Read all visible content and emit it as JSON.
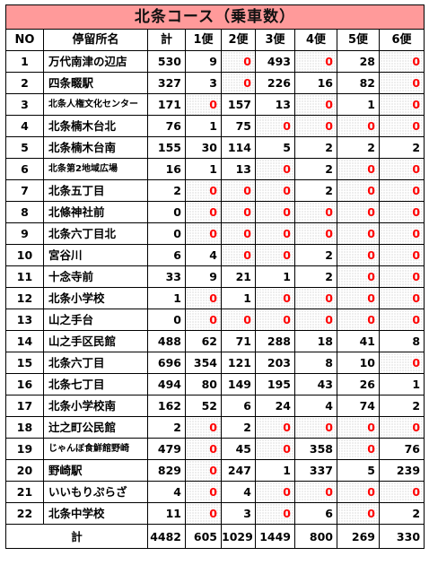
{
  "title": "北条コース（乗車数）",
  "headers": [
    "NO",
    "停留所名",
    "計",
    "1便",
    "2便",
    "3便",
    "4便",
    "5便",
    "6便"
  ],
  "rows": [
    {
      "no": "1",
      "name": "万代南津の辺店",
      "small": false,
      "values": [
        "530",
        "9",
        "0",
        "493",
        "0",
        "28",
        "0"
      ]
    },
    {
      "no": "2",
      "name": "四条畷駅",
      "small": false,
      "values": [
        "327",
        "3",
        "0",
        "226",
        "16",
        "82",
        "0"
      ]
    },
    {
      "no": "3",
      "name": "北条人権文化センター",
      "small": true,
      "values": [
        "171",
        "0",
        "157",
        "13",
        "0",
        "1",
        "0"
      ]
    },
    {
      "no": "4",
      "name": "北条楠木台北",
      "small": false,
      "values": [
        "76",
        "1",
        "75",
        "0",
        "0",
        "0",
        "0"
      ]
    },
    {
      "no": "5",
      "name": "北条楠木台南",
      "small": false,
      "values": [
        "155",
        "30",
        "114",
        "5",
        "2",
        "2",
        "2"
      ]
    },
    {
      "no": "6",
      "name": "北条第2地域広場",
      "small": true,
      "values": [
        "16",
        "1",
        "13",
        "0",
        "2",
        "0",
        "0"
      ]
    },
    {
      "no": "7",
      "name": "北条五丁目",
      "small": false,
      "values": [
        "2",
        "0",
        "0",
        "0",
        "2",
        "0",
        "0"
      ]
    },
    {
      "no": "8",
      "name": "北條神社前",
      "small": false,
      "values": [
        "0",
        "0",
        "0",
        "0",
        "0",
        "0",
        "0"
      ]
    },
    {
      "no": "9",
      "name": "北条六丁目北",
      "small": false,
      "values": [
        "0",
        "0",
        "0",
        "0",
        "0",
        "0",
        "0"
      ]
    },
    {
      "no": "10",
      "name": "宮谷川",
      "small": false,
      "values": [
        "6",
        "4",
        "0",
        "0",
        "2",
        "0",
        "0"
      ]
    },
    {
      "no": "11",
      "name": "十念寺前",
      "small": false,
      "values": [
        "33",
        "9",
        "21",
        "1",
        "2",
        "0",
        "0"
      ]
    },
    {
      "no": "12",
      "name": "北条小学校",
      "small": false,
      "values": [
        "1",
        "0",
        "1",
        "0",
        "0",
        "0",
        "0"
      ]
    },
    {
      "no": "13",
      "name": "山之手台",
      "small": false,
      "values": [
        "0",
        "0",
        "0",
        "0",
        "0",
        "0",
        "0"
      ]
    },
    {
      "no": "14",
      "name": "山之手区民館",
      "small": false,
      "values": [
        "488",
        "62",
        "71",
        "288",
        "18",
        "41",
        "8"
      ]
    },
    {
      "no": "15",
      "name": "北条六丁目",
      "small": false,
      "values": [
        "696",
        "354",
        "121",
        "203",
        "8",
        "10",
        "0"
      ]
    },
    {
      "no": "16",
      "name": "北条七丁目",
      "small": false,
      "values": [
        "494",
        "80",
        "149",
        "195",
        "43",
        "26",
        "1"
      ]
    },
    {
      "no": "17",
      "name": "北条小学校南",
      "small": false,
      "values": [
        "162",
        "52",
        "6",
        "24",
        "4",
        "74",
        "2"
      ]
    },
    {
      "no": "18",
      "name": "辻之町公民館",
      "small": false,
      "values": [
        "2",
        "0",
        "2",
        "0",
        "0",
        "0",
        "0"
      ]
    },
    {
      "no": "19",
      "name": "じゃんぼ食鮮館野崎",
      "small": true,
      "values": [
        "479",
        "0",
        "45",
        "0",
        "358",
        "0",
        "76"
      ]
    },
    {
      "no": "20",
      "name": "野崎駅",
      "small": false,
      "values": [
        "829",
        "0",
        "247",
        "1",
        "337",
        "5",
        "239"
      ]
    },
    {
      "no": "21",
      "name": "いいもりぷらざ",
      "small": false,
      "values": [
        "4",
        "0",
        "4",
        "0",
        "0",
        "0",
        "0"
      ]
    },
    {
      "no": "22",
      "name": "北条中学校",
      "small": false,
      "values": [
        "11",
        "0",
        "3",
        "0",
        "6",
        "0",
        "2"
      ]
    }
  ],
  "total": {
    "label": "計",
    "values": [
      "4482",
      "605",
      "1029",
      "1449",
      "800",
      "269",
      "330"
    ]
  }
}
